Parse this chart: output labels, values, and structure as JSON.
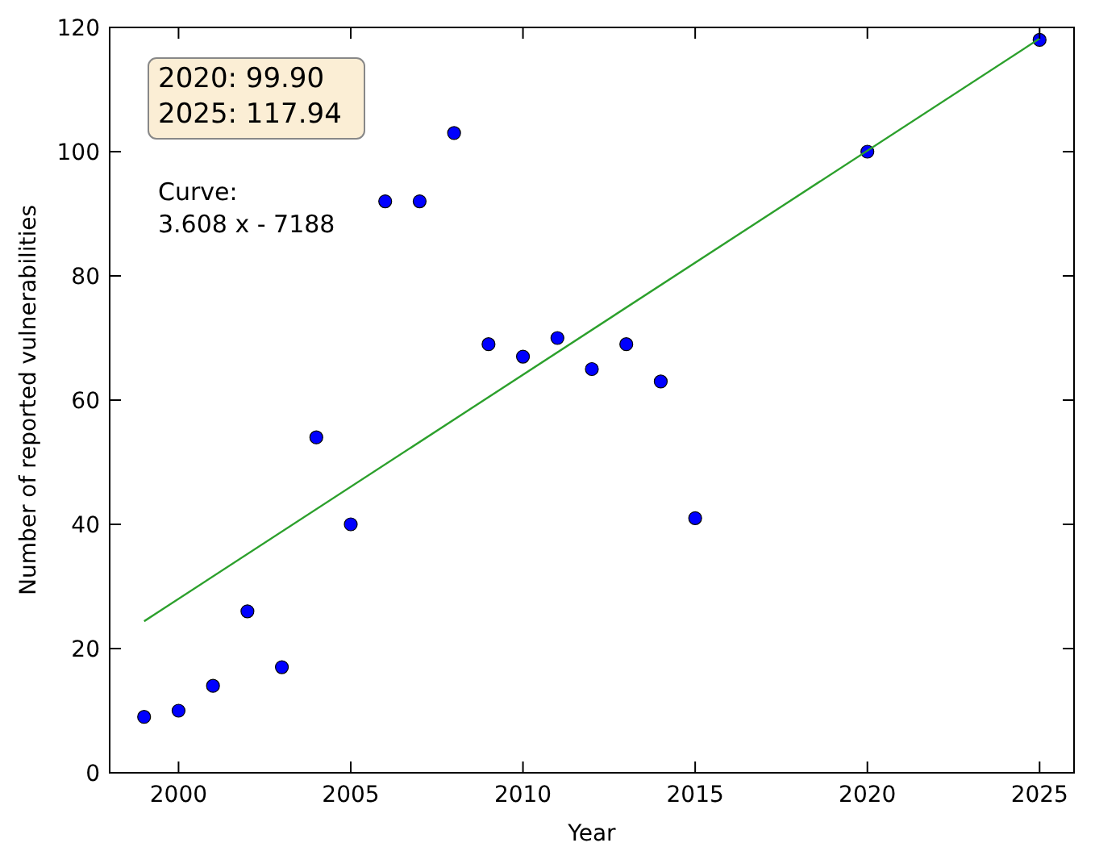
{
  "chart_data": {
    "type": "scatter",
    "xlabel": "Year",
    "ylabel": "Number of reported vulnerabilities",
    "xlim": [
      1998,
      2026
    ],
    "xticks": [
      2000,
      2005,
      2010,
      2015,
      2020,
      2025
    ],
    "ylim": [
      0,
      120
    ],
    "yticks": [
      0,
      20,
      40,
      60,
      80,
      100,
      120
    ],
    "marker": "circle",
    "series": [
      {
        "color": "#0000ff",
        "x": [
          1999,
          2000,
          2001,
          2002,
          2003,
          2004,
          2005,
          2006,
          2007,
          2008,
          2009,
          2010,
          2011,
          2012,
          2013,
          2014,
          2015,
          2020,
          2025
        ],
        "values": [
          9,
          10,
          14,
          26,
          17,
          54,
          40,
          92,
          92,
          103,
          69,
          67,
          70,
          65,
          69,
          63,
          41,
          100,
          118
        ]
      },
      {
        "type": "line",
        "color": "#2ca02c",
        "marker": "none",
        "x": [
          1999,
          2025
        ],
        "values": [
          24.4,
          118.2
        ]
      }
    ],
    "annotations": [
      "2020: 99.90\n2025: 117.94",
      "Curve:\n3.608 x - 7188"
    ]
  }
}
